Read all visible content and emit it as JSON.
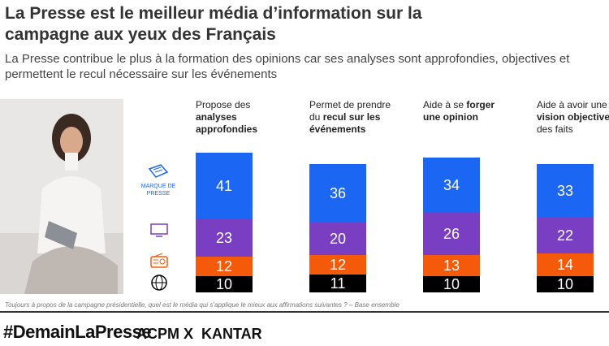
{
  "chart_data": {
    "type": "stacked-bar",
    "title": "La Presse est le meilleur média d’information sur la campagne aux yeux des Français",
    "subtitle": "La Presse contribue le plus à la formation des opinions car ses analyses sont approfondies, objectives et permettent le recul nécessaire sur les événements",
    "categories": [
      [
        "Propose des ",
        "analyses approfondies"
      ],
      [
        "Permet de prendre du ",
        "recul sur les événements"
      ],
      [
        "Aide à se ",
        "forger une opinion"
      ],
      [
        "Aide à avoir une ",
        "vision objective",
        " des faits"
      ]
    ],
    "series": [
      {
        "name": "MARQUE DE PRESSE",
        "color": "#1b66f2",
        "values": [
          41,
          36,
          34,
          33
        ]
      },
      {
        "color": "#7a3ec3",
        "values": [
          23,
          20,
          26,
          22
        ]
      },
      {
        "color": "#f55a0a",
        "values": [
          12,
          12,
          13,
          14
        ]
      },
      {
        "color": "#000000",
        "values": [
          10,
          11,
          10,
          10
        ]
      }
    ],
    "footnote": "Toujours à propos de la campagne présidentielle, quel est le média qui s’applique le mieux aux affirmations suivantes ? – Base ensemble",
    "hashtag": "#DemainLaPresse",
    "logos": [
      "ACPM",
      "X",
      "KANTAR"
    ]
  }
}
